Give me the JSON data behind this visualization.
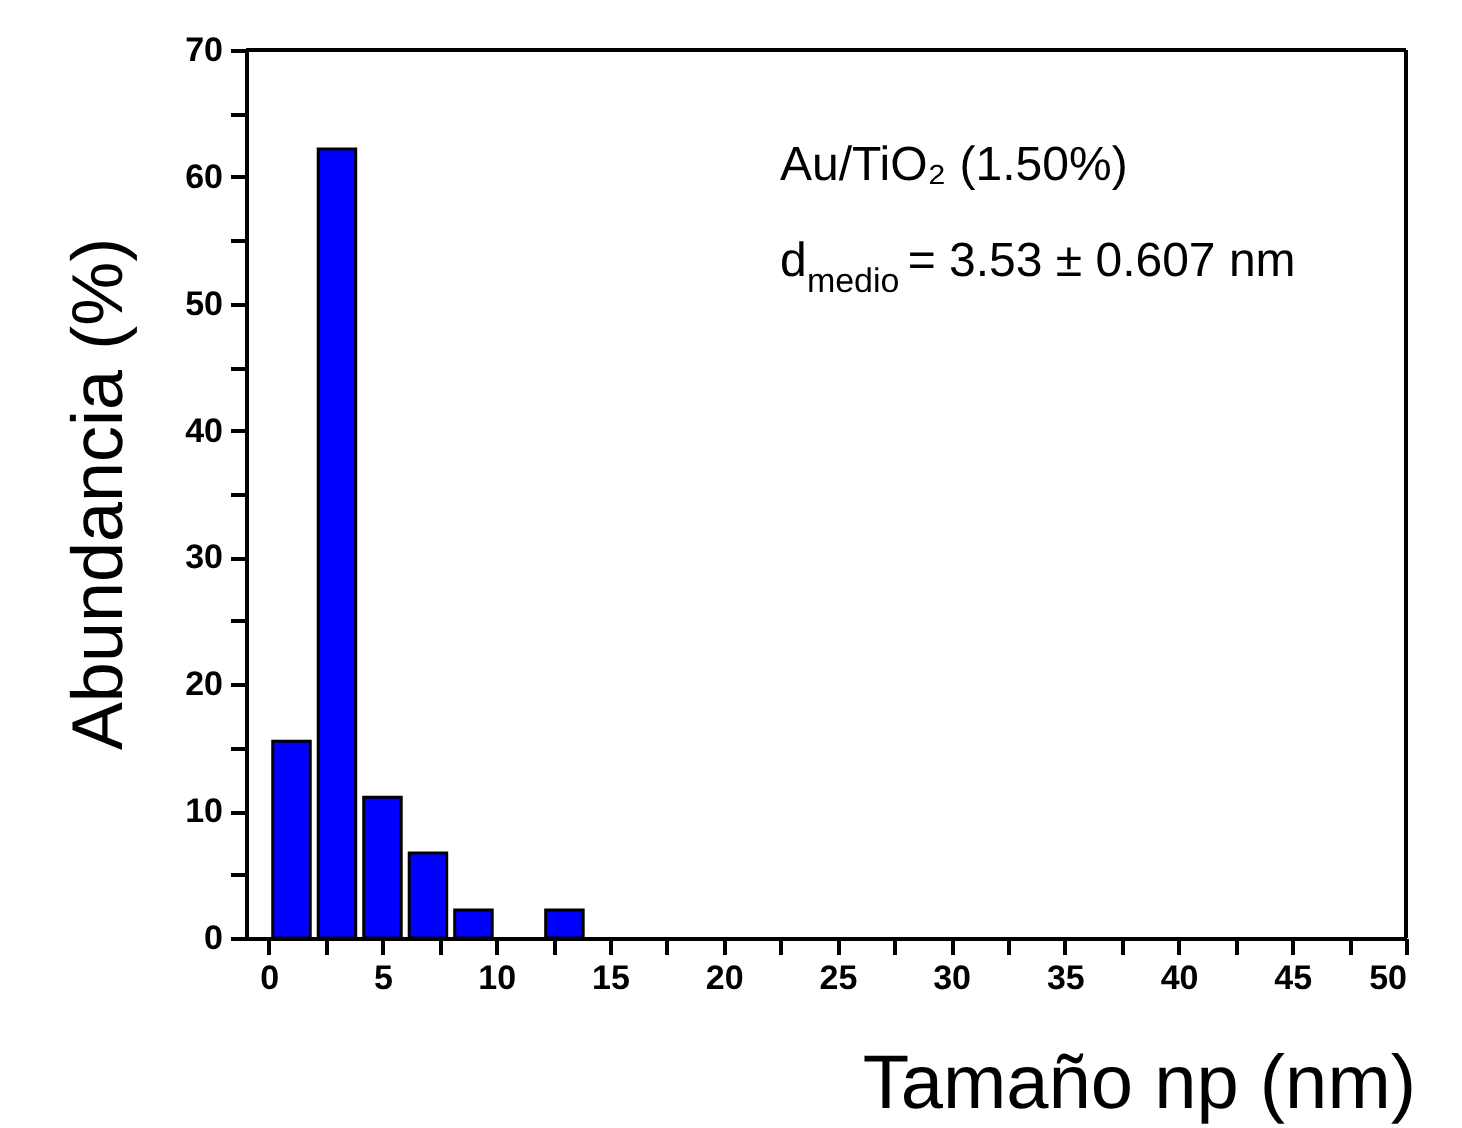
{
  "chart_data": {
    "type": "histogram",
    "xlabel": "Tamaño np (nm)",
    "ylabel": "Abundancia (%)",
    "bins": [
      0,
      2,
      4,
      6,
      8,
      10,
      12,
      14
    ],
    "values": [
      15.5,
      62.2,
      11.1,
      6.7,
      2.2,
      0,
      2.2
    ],
    "color": "#0000ff",
    "xlim": [
      -1,
      50
    ],
    "ylim": [
      0,
      70
    ],
    "xticks": [
      0,
      {
        "value": 2.5,
        "label": null
      },
      5,
      {
        "value": 7.5,
        "label": null
      },
      10,
      {
        "value": 12.5,
        "label": null
      },
      15,
      {
        "value": 17.5,
        "label": null
      },
      20,
      {
        "value": 22.5,
        "label": null
      },
      25,
      {
        "value": 27.5,
        "label": null
      },
      30,
      {
        "value": 32.5,
        "label": null
      },
      35,
      {
        "value": 37.5,
        "label": null
      },
      40,
      {
        "value": 42.5,
        "label": null
      },
      45,
      {
        "value": 47.5,
        "label": null
      },
      50
    ],
    "yticks": [
      0,
      {
        "value": 5,
        "label": null
      },
      10,
      {
        "value": 15,
        "label": null
      },
      20,
      {
        "value": 25,
        "label": null
      },
      30,
      {
        "value": 35,
        "label": null
      },
      40,
      {
        "value": 45,
        "label": null
      },
      50,
      {
        "value": 55,
        "label": null
      },
      60,
      {
        "value": 65,
        "label": null
      },
      70
    ],
    "grid": false,
    "annotations": [
      "Au/TiO₂ (1.50%)",
      "d$_{medio}$ = 3.53 ± 0.607 nm"
    ]
  }
}
